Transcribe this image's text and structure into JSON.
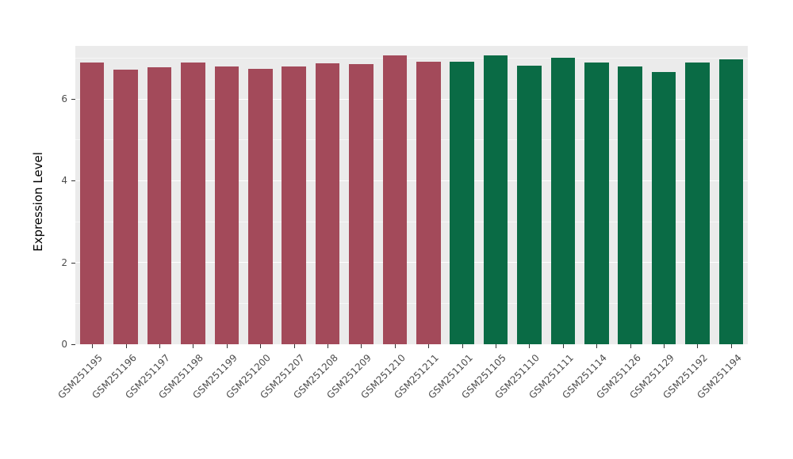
{
  "style": {
    "background": "#FFFFFF",
    "panel_background": "#EBEBEB",
    "grid_major_color": "#FFFFFF",
    "grid_minor_color": "#F7F7F7",
    "tick_text_color": "#4D4D4D",
    "axis_title_color": "#000000",
    "group1_color": "#A34A5A",
    "group2_color": "#0A6B45"
  },
  "chart_data": {
    "type": "bar",
    "title": "",
    "xlabel": "",
    "ylabel": "Expression Level",
    "legend_position": "none",
    "grid": true,
    "ylim": [
      0,
      7.3
    ],
    "yticks": [
      0,
      2,
      4,
      6
    ],
    "minor_yticks": [
      1,
      3,
      5,
      7
    ],
    "categories": [
      "GSM251195",
      "GSM251196",
      "GSM251197",
      "GSM251198",
      "GSM251199",
      "GSM251200",
      "GSM251207",
      "GSM251208",
      "GSM251209",
      "GSM251210",
      "GSM251211",
      "GSM251101",
      "GSM251105",
      "GSM251110",
      "GSM251111",
      "GSM251114",
      "GSM251126",
      "GSM251129",
      "GSM251192",
      "GSM251194"
    ],
    "values": [
      6.9,
      6.72,
      6.78,
      6.9,
      6.8,
      6.73,
      6.79,
      6.87,
      6.86,
      7.06,
      6.92,
      6.91,
      7.06,
      6.81,
      7.01,
      6.9,
      6.8,
      6.66,
      6.9,
      6.97
    ],
    "colors": [
      "#A34A5A",
      "#A34A5A",
      "#A34A5A",
      "#A34A5A",
      "#A34A5A",
      "#A34A5A",
      "#A34A5A",
      "#A34A5A",
      "#A34A5A",
      "#A34A5A",
      "#A34A5A",
      "#0A6B45",
      "#0A6B45",
      "#0A6B45",
      "#0A6B45",
      "#0A6B45",
      "#0A6B45",
      "#0A6B45",
      "#0A6B45",
      "#0A6B45"
    ]
  }
}
